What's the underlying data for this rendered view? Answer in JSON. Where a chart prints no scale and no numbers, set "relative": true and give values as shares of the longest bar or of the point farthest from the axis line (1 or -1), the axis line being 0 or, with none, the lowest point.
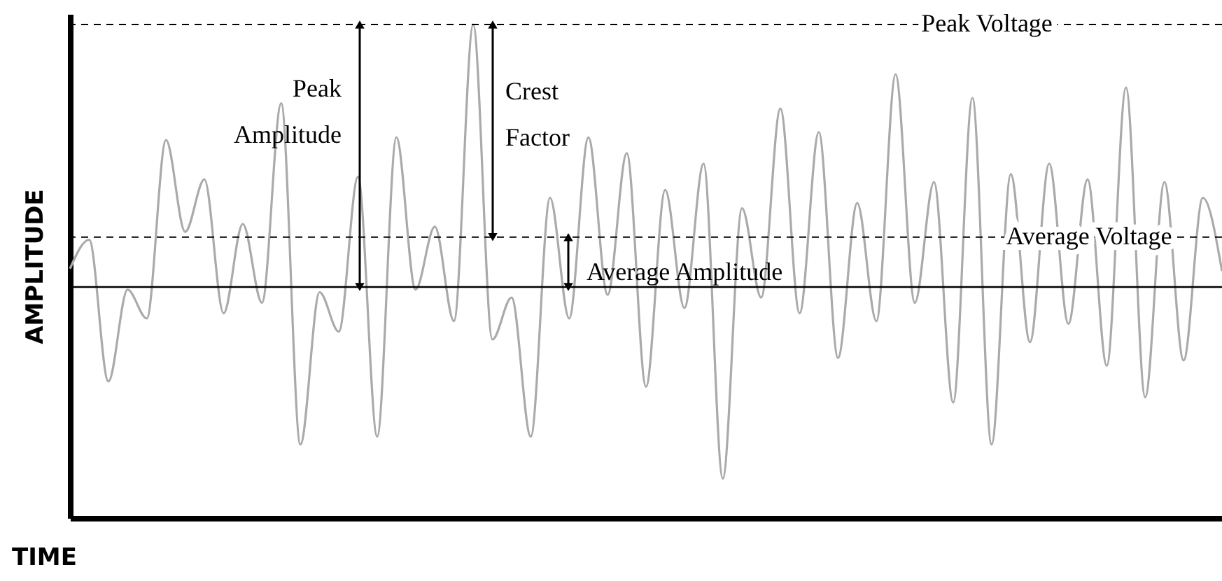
{
  "chart_data": {
    "type": "line",
    "relative": true,
    "xlabel": "TIME",
    "ylabel": "AMPLITUDE",
    "color": "#aaaaaa",
    "grid": false,
    "marker": "none",
    "line_style": "solid",
    "categories": [
      null,
      null,
      null,
      null,
      null,
      null,
      null,
      null,
      null,
      null,
      null,
      null,
      null,
      null,
      null,
      null,
      null,
      null,
      null,
      null,
      null,
      null,
      null,
      null,
      null,
      null,
      null,
      null,
      null,
      null,
      null,
      null,
      null,
      null,
      null,
      null,
      null,
      null,
      null,
      null,
      null,
      null,
      null,
      null,
      null,
      null,
      null,
      null,
      null,
      null,
      null,
      null,
      null,
      null,
      null,
      null,
      null,
      null,
      null,
      null,
      null
    ],
    "values": [
      0.07,
      0.18,
      -0.36,
      -0.01,
      -0.12,
      0.56,
      0.21,
      0.41,
      -0.1,
      0.24,
      -0.06,
      0.7,
      -0.6,
      -0.02,
      -0.17,
      0.42,
      -0.57,
      0.57,
      -0.01,
      0.23,
      -0.13,
      1,
      -0.2,
      -0.04,
      -0.57,
      0.34,
      -0.12,
      0.57,
      -0.03,
      0.51,
      -0.38,
      0.37,
      -0.08,
      0.47,
      -0.73,
      0.3,
      -0.04,
      0.68,
      -0.1,
      0.59,
      -0.27,
      0.32,
      -0.13,
      0.81,
      -0.06,
      0.4,
      -0.44,
      0.72,
      -0.6,
      0.43,
      -0.21,
      0.47,
      -0.14,
      0.41,
      -0.3,
      0.76,
      -0.42,
      0.4,
      -0.28,
      0.34,
      0.06
    ],
    "ref_lines": [
      {
        "axis": "y",
        "value": 1,
        "label": "Peak Voltage",
        "line_style": "dashed",
        "color": "#000000"
      },
      {
        "axis": "y",
        "value": 0.19,
        "label": "Average Voltage",
        "line_style": "dashed",
        "color": "#000000"
      }
    ],
    "annotations": [
      "Peak Amplitude",
      "Crest Factor",
      "Average Amplitude"
    ]
  }
}
